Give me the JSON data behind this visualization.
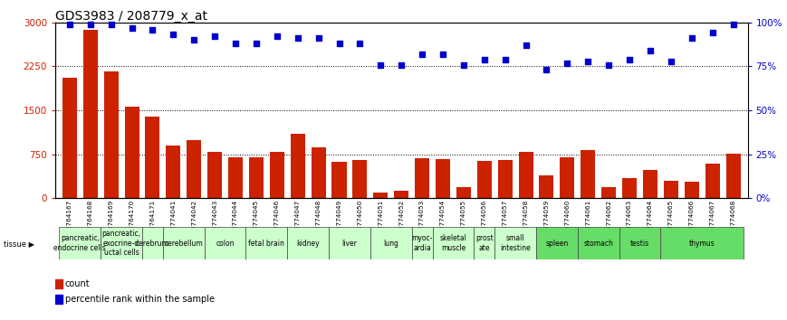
{
  "title": "GDS3983 / 208779_x_at",
  "gsm_ids": [
    "GSM764167",
    "GSM764168",
    "GSM764169",
    "GSM764170",
    "GSM764171",
    "GSM774041",
    "GSM774042",
    "GSM774043",
    "GSM774044",
    "GSM774045",
    "GSM774046",
    "GSM774047",
    "GSM774048",
    "GSM774049",
    "GSM774050",
    "GSM774051",
    "GSM774052",
    "GSM774053",
    "GSM774054",
    "GSM774055",
    "GSM774056",
    "GSM774057",
    "GSM774058",
    "GSM774059",
    "GSM774060",
    "GSM774061",
    "GSM774062",
    "GSM774063",
    "GSM774064",
    "GSM774065",
    "GSM774066",
    "GSM774067",
    "GSM774068"
  ],
  "counts": [
    2050,
    2870,
    2160,
    1570,
    1400,
    900,
    1000,
    800,
    700,
    700,
    800,
    1100,
    870,
    630,
    650,
    100,
    130,
    680,
    670,
    190,
    640,
    650,
    790,
    400,
    700,
    820,
    200,
    350,
    490,
    300,
    280,
    600,
    760
  ],
  "percentiles": [
    99,
    99,
    99,
    97,
    96,
    93,
    90,
    92,
    88,
    88,
    92,
    91,
    91,
    88,
    88,
    76,
    76,
    82,
    82,
    76,
    79,
    79,
    87,
    73,
    77,
    78,
    76,
    79,
    84,
    78,
    91,
    94,
    99
  ],
  "tissue_groups": [
    {
      "label": "pancreatic,\nendocrine cells",
      "start": 0,
      "end": 2,
      "color": "#ccffcc"
    },
    {
      "label": "pancreatic,\nexocrine-d\nuctal cells",
      "start": 2,
      "end": 4,
      "color": "#ccffcc"
    },
    {
      "label": "cerebrum",
      "start": 4,
      "end": 5,
      "color": "#ccffcc"
    },
    {
      "label": "cerebellum",
      "start": 5,
      "end": 7,
      "color": "#ccffcc"
    },
    {
      "label": "colon",
      "start": 7,
      "end": 9,
      "color": "#ccffcc"
    },
    {
      "label": "fetal brain",
      "start": 9,
      "end": 11,
      "color": "#ccffcc"
    },
    {
      "label": "kidney",
      "start": 11,
      "end": 13,
      "color": "#ccffcc"
    },
    {
      "label": "liver",
      "start": 13,
      "end": 15,
      "color": "#ccffcc"
    },
    {
      "label": "lung",
      "start": 15,
      "end": 17,
      "color": "#ccffcc"
    },
    {
      "label": "myoc-\nardia",
      "start": 17,
      "end": 18,
      "color": "#ccffcc"
    },
    {
      "label": "skeletal\nmuscle",
      "start": 18,
      "end": 20,
      "color": "#ccffcc"
    },
    {
      "label": "prost\nate",
      "start": 20,
      "end": 21,
      "color": "#ccffcc"
    },
    {
      "label": "small\nintestine",
      "start": 21,
      "end": 23,
      "color": "#ccffcc"
    },
    {
      "label": "spleen",
      "start": 23,
      "end": 25,
      "color": "#66dd66"
    },
    {
      "label": "stomach",
      "start": 25,
      "end": 27,
      "color": "#66dd66"
    },
    {
      "label": "testis",
      "start": 27,
      "end": 29,
      "color": "#66dd66"
    },
    {
      "label": "thymus",
      "start": 29,
      "end": 33,
      "color": "#66dd66"
    }
  ],
  "bar_color": "#cc2200",
  "dot_color": "#0000cc",
  "ylim_left": [
    0,
    3000
  ],
  "ylim_right": [
    0,
    100
  ],
  "yticks_left": [
    0,
    750,
    1500,
    2250,
    3000
  ],
  "yticks_right": [
    0,
    25,
    50,
    75,
    100
  ],
  "grid_lines": [
    750,
    1500,
    2250
  ],
  "bg_color": "#ffffff",
  "title_fontsize": 10,
  "light_green": "#ccffcc",
  "bright_green": "#66dd66"
}
